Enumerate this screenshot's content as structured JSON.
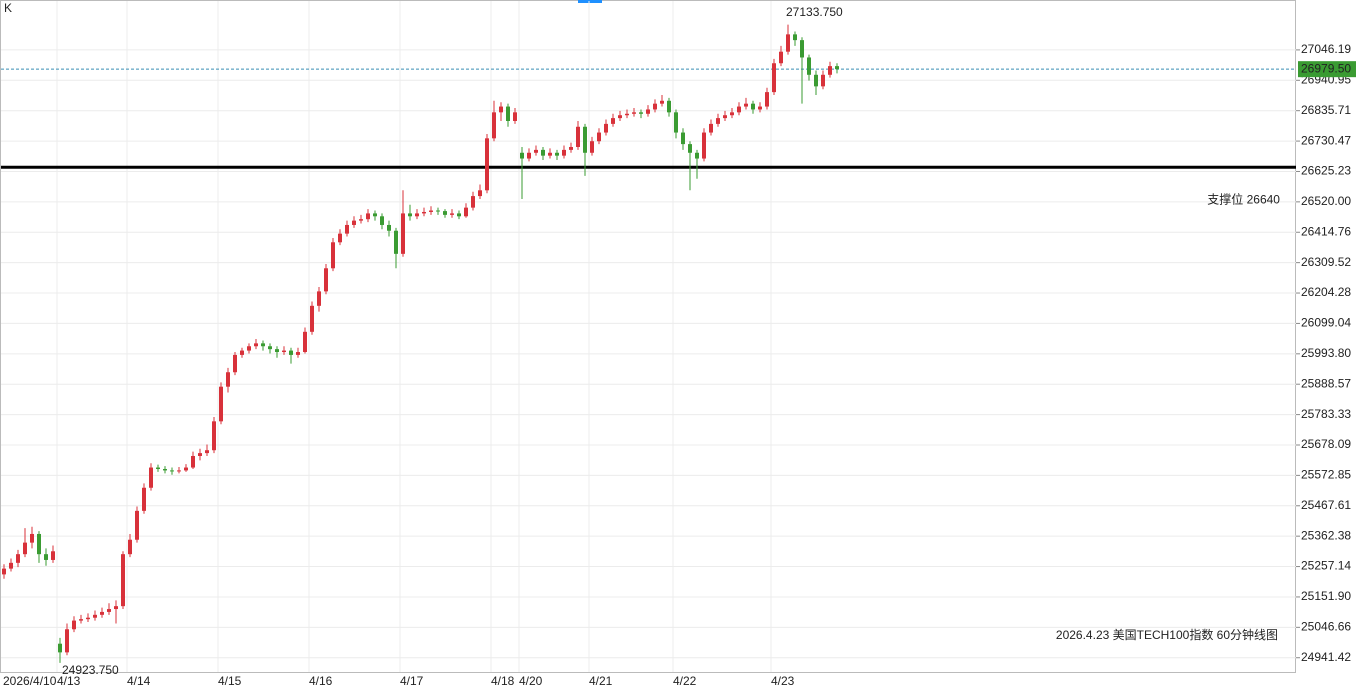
{
  "chart_data": {
    "type": "candlestick",
    "corner_label": "K",
    "title": "2026.4.23 美国TECH100指数 60分钟线图",
    "up_color": "#d8313a",
    "down_color": "#3a9b32",
    "categories": [
      "2026/4/10",
      null,
      null,
      null,
      null,
      null,
      null,
      null,
      "4/13",
      null,
      null,
      null,
      null,
      null,
      null,
      null,
      null,
      null,
      "4/14",
      null,
      null,
      null,
      null,
      null,
      null,
      null,
      null,
      null,
      null,
      null,
      null,
      "4/15",
      null,
      null,
      null,
      null,
      null,
      null,
      null,
      null,
      null,
      null,
      null,
      null,
      "4/16",
      null,
      null,
      null,
      null,
      null,
      null,
      null,
      null,
      null,
      null,
      null,
      null,
      "4/17",
      null,
      null,
      null,
      null,
      null,
      null,
      null,
      null,
      null,
      null,
      null,
      null,
      "4/18",
      null,
      null,
      null,
      "4/20",
      null,
      null,
      null,
      null,
      null,
      null,
      null,
      null,
      null,
      "4/21",
      null,
      null,
      null,
      null,
      null,
      null,
      null,
      null,
      null,
      null,
      null,
      "4/22",
      null,
      null,
      null,
      null,
      null,
      null,
      null,
      null,
      null,
      null,
      null,
      null,
      null,
      "4/23",
      null,
      null,
      null,
      null,
      null,
      null,
      null,
      null,
      null
    ],
    "ohlc": [
      [
        25230,
        25265,
        25215,
        25250
      ],
      [
        25250,
        25285,
        25240,
        25270
      ],
      [
        25270,
        25315,
        25255,
        25300
      ],
      [
        25300,
        25390,
        25290,
        25340
      ],
      [
        25340,
        25395,
        25320,
        25370
      ],
      [
        25370,
        25380,
        25270,
        25300
      ],
      [
        25300,
        25320,
        25260,
        25280
      ],
      [
        25280,
        25330,
        25270,
        25310
      ],
      [
        24990,
        25010,
        24923.75,
        24960
      ],
      [
        24960,
        25060,
        24950,
        25040
      ],
      [
        25040,
        25085,
        25030,
        25070
      ],
      [
        25070,
        25090,
        25060,
        25075
      ],
      [
        25075,
        25095,
        25065,
        25080
      ],
      [
        25080,
        25105,
        25070,
        25090
      ],
      [
        25090,
        25115,
        25080,
        25100
      ],
      [
        25100,
        25130,
        25090,
        25110
      ],
      [
        25110,
        25140,
        25060,
        25120
      ],
      [
        25120,
        25310,
        25110,
        25300
      ],
      [
        25300,
        25370,
        25290,
        25350
      ],
      [
        25350,
        25465,
        25340,
        25450
      ],
      [
        25450,
        25545,
        25440,
        25530
      ],
      [
        25530,
        25615,
        25520,
        25600
      ],
      [
        25600,
        25610,
        25585,
        25595
      ],
      [
        25595,
        25605,
        25580,
        25590
      ],
      [
        25590,
        25600,
        25575,
        25588
      ],
      [
        25588,
        25602,
        25580,
        25590
      ],
      [
        25590,
        25612,
        25585,
        25600
      ],
      [
        25600,
        25655,
        25595,
        25640
      ],
      [
        25640,
        25665,
        25625,
        25650
      ],
      [
        25650,
        25680,
        25640,
        25660
      ],
      [
        25660,
        25775,
        25650,
        25760
      ],
      [
        25760,
        25895,
        25750,
        25880
      ],
      [
        25880,
        25945,
        25860,
        25930
      ],
      [
        25930,
        26000,
        25920,
        25990
      ],
      [
        25990,
        26015,
        25980,
        26005
      ],
      [
        26005,
        26030,
        25995,
        26020
      ],
      [
        26020,
        26045,
        26010,
        26030
      ],
      [
        26030,
        26040,
        26005,
        26020
      ],
      [
        26020,
        26030,
        25995,
        26010
      ],
      [
        26010,
        26020,
        25980,
        26000
      ],
      [
        26000,
        26020,
        25990,
        26005
      ],
      [
        26005,
        26015,
        25960,
        25990
      ],
      [
        25990,
        26015,
        25980,
        26000
      ],
      [
        26000,
        26085,
        25995,
        26070
      ],
      [
        26070,
        26175,
        26060,
        26160
      ],
      [
        26160,
        26225,
        26140,
        26210
      ],
      [
        26210,
        26305,
        26200,
        26290
      ],
      [
        26290,
        26395,
        26280,
        26380
      ],
      [
        26380,
        26425,
        26370,
        26410
      ],
      [
        26410,
        26455,
        26400,
        26440
      ],
      [
        26440,
        26470,
        26430,
        26455
      ],
      [
        26455,
        26475,
        26445,
        26460
      ],
      [
        26460,
        26495,
        26450,
        26480
      ],
      [
        26480,
        26490,
        26455,
        26470
      ],
      [
        26470,
        26480,
        26425,
        26440
      ],
      [
        26440,
        26455,
        26400,
        26420
      ],
      [
        26420,
        26430,
        26290,
        26340
      ],
      [
        26340,
        26560,
        26330,
        26480
      ],
      [
        26480,
        26510,
        26455,
        26470
      ],
      [
        26470,
        26495,
        26460,
        26480
      ],
      [
        26480,
        26500,
        26470,
        26485
      ],
      [
        26485,
        26505,
        26475,
        26490
      ],
      [
        26490,
        26500,
        26475,
        26488
      ],
      [
        26488,
        26495,
        26465,
        26475
      ],
      [
        26475,
        26495,
        26465,
        26480
      ],
      [
        26480,
        26490,
        26460,
        26470
      ],
      [
        26470,
        26515,
        26465,
        26500
      ],
      [
        26500,
        26555,
        26490,
        26540
      ],
      [
        26540,
        26580,
        26530,
        26560
      ],
      [
        26560,
        26755,
        26550,
        26740
      ],
      [
        26740,
        26870,
        26730,
        26830
      ],
      [
        26830,
        26865,
        26800,
        26850
      ],
      [
        26850,
        26860,
        26780,
        26800
      ],
      [
        26800,
        26845,
        26790,
        26830
      ],
      [
        26690,
        26710,
        26530,
        26670
      ],
      [
        26670,
        26705,
        26660,
        26690
      ],
      [
        26690,
        26715,
        26680,
        26700
      ],
      [
        26700,
        26710,
        26665,
        26680
      ],
      [
        26680,
        26705,
        26670,
        26690
      ],
      [
        26690,
        26700,
        26665,
        26680
      ],
      [
        26680,
        26715,
        26670,
        26700
      ],
      [
        26700,
        26725,
        26690,
        26710
      ],
      [
        26710,
        26800,
        26700,
        26780
      ],
      [
        26780,
        26790,
        26610,
        26690
      ],
      [
        26690,
        26745,
        26680,
        26730
      ],
      [
        26730,
        26775,
        26720,
        26760
      ],
      [
        26760,
        26805,
        26750,
        26790
      ],
      [
        26790,
        26825,
        26780,
        26810
      ],
      [
        26810,
        26835,
        26800,
        26820
      ],
      [
        26820,
        26840,
        26810,
        26825
      ],
      [
        26825,
        26845,
        26815,
        26830
      ],
      [
        26830,
        26840,
        26810,
        26825
      ],
      [
        26825,
        26855,
        26815,
        26840
      ],
      [
        26840,
        26875,
        26830,
        26860
      ],
      [
        26860,
        26890,
        26850,
        26870
      ],
      [
        26870,
        26880,
        26815,
        26830
      ],
      [
        26830,
        26840,
        26740,
        26760
      ],
      [
        26760,
        26775,
        26700,
        26720
      ],
      [
        26720,
        26730,
        26560,
        26690
      ],
      [
        26690,
        26700,
        26600,
        26670
      ],
      [
        26670,
        26775,
        26660,
        26760
      ],
      [
        26760,
        26805,
        26750,
        26790
      ],
      [
        26790,
        26825,
        26780,
        26810
      ],
      [
        26810,
        26835,
        26800,
        26820
      ],
      [
        26820,
        26845,
        26810,
        26830
      ],
      [
        26830,
        26865,
        26820,
        26850
      ],
      [
        26850,
        26880,
        26840,
        26860
      ],
      [
        26860,
        26870,
        26825,
        26840
      ],
      [
        26840,
        26865,
        26830,
        26850
      ],
      [
        26850,
        26915,
        26840,
        26900
      ],
      [
        26900,
        27015,
        26890,
        27000
      ],
      [
        27000,
        27060,
        26990,
        27040
      ],
      [
        27040,
        27133.75,
        27030,
        27100
      ],
      [
        27100,
        27110,
        27060,
        27080
      ],
      [
        27080,
        27090,
        26860,
        27020
      ],
      [
        27020,
        27030,
        26940,
        26960
      ],
      [
        26960,
        26975,
        26890,
        26920
      ],
      [
        26920,
        26975,
        26910,
        26960
      ],
      [
        26960,
        27005,
        26950,
        26990
      ],
      [
        26990,
        27000,
        26965,
        26979.5
      ]
    ],
    "ylim": [
      24892,
      27219
    ],
    "yticks": [
      27046.19,
      26940.95,
      26835.71,
      26730.47,
      26625.23,
      {
        "value": 26520,
        "label": "26520.00"
      },
      26414.76,
      26309.52,
      26204.28,
      26099.04,
      {
        "value": 25993.8,
        "label": "25993.80"
      },
      25888.57,
      25783.33,
      25678.09,
      25572.85,
      25467.61,
      25362.38,
      25257.14,
      {
        "value": 25151.9,
        "label": "25151.90"
      },
      25046.66,
      24941.42
    ],
    "grid": true,
    "high_label": {
      "value": 27133.75,
      "label": "27133.750"
    },
    "low_label": {
      "value": 24923.75,
      "label": "24923.750"
    },
    "last_price": {
      "value": 26979.5,
      "label": "26979.50"
    },
    "support": {
      "value": 26640,
      "label": "支撑位 26640"
    }
  }
}
